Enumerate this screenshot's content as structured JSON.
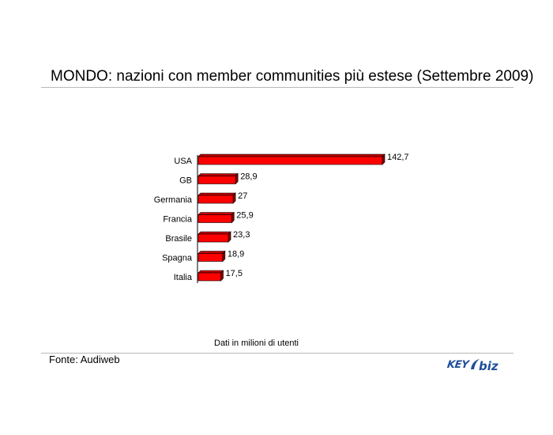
{
  "title": "MONDO: nazioni con member communities più estese (Settembre 2009)",
  "note": "Dati in milioni di utenti",
  "source": "Fonte: Audiweb",
  "logo_text": "KEY4biz",
  "colors": {
    "bar": "#ff0000",
    "bar_top": "#c00000",
    "bar_side": "#8a0000",
    "rule": "#b8b8b8",
    "logo": "#1f4f9a"
  },
  "chart_data": {
    "type": "bar",
    "orientation": "horizontal",
    "categories": [
      "USA",
      "GB",
      "Germania",
      "Francia",
      "Brasile",
      "Spagna",
      "Italia"
    ],
    "values": [
      142.7,
      28.9,
      27,
      25.9,
      23.3,
      18.9,
      17.5
    ],
    "value_labels": [
      "142,7",
      "28,9",
      "27",
      "25,9",
      "23,3",
      "18,9",
      "17,5"
    ],
    "xlim": [
      0,
      142.7
    ],
    "grid": false
  }
}
